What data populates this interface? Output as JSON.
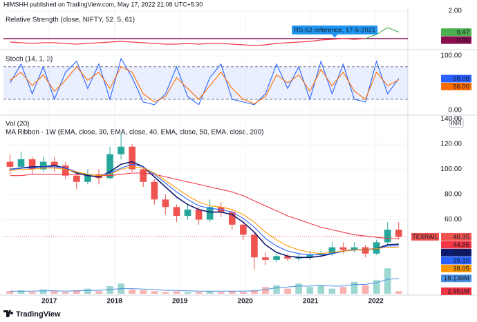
{
  "header": "HIMSHH published on TradingView.com, May 17, 2022 21:08 UTC+5:30",
  "footer": "TradingView",
  "chart_data": [
    {
      "type": "line",
      "title": "Relative Strength (close, NIFTY, 52, 5, 61)",
      "x": [
        2016.4,
        2016.57,
        2016.74,
        2016.91,
        2017.08,
        2017.25,
        2017.42,
        2017.59,
        2017.76,
        2017.93,
        2018.1,
        2018.27,
        2018.44,
        2018.61,
        2018.78,
        2018.95,
        2019.12,
        2019.29,
        2019.46,
        2019.63,
        2019.8,
        2019.97,
        2020.14,
        2020.31,
        2020.48,
        2020.65,
        2020.82,
        2020.99,
        2021.16,
        2021.33,
        2021.5,
        2021.67,
        2021.84,
        2022.01,
        2022.18,
        2022.35
      ],
      "xlim": [
        2016.3,
        2022.49
      ],
      "ylim": [
        -0.7,
        2.2
      ],
      "yticks": [
        {
          "value": 2,
          "label": "2.00"
        }
      ],
      "series": [
        {
          "color": "#f23645",
          "pos_color": "#4caf50",
          "label": "0.47",
          "values": [
            -0.25,
            -0.3,
            -0.35,
            -0.3,
            -0.3,
            -0.35,
            -0.4,
            -0.35,
            -0.3,
            -0.25,
            -0.2,
            -0.25,
            -0.3,
            -0.35,
            -0.4,
            -0.4,
            -0.35,
            -0.4,
            -0.35,
            -0.35,
            -0.4,
            -0.45,
            -0.5,
            -0.45,
            -0.35,
            -0.3,
            -0.25,
            -0.2,
            -0.1,
            -0.05,
            0,
            -0.05,
            0,
            0.3,
            0.8,
            0.47
          ]
        }
      ],
      "reference": {
        "value": 0,
        "label": "0.00",
        "color": "#880e4f"
      },
      "annotation": {
        "text": "RS-52 reference, 17-5-2021",
        "x": 2021.37,
        "color": "#2196f3"
      }
    },
    {
      "type": "line",
      "title": "Stoch (14, 1, 3)",
      "x": [
        2016.4,
        2016.57,
        2016.74,
        2016.91,
        2017.08,
        2017.25,
        2017.42,
        2017.59,
        2017.76,
        2017.93,
        2018.1,
        2018.27,
        2018.44,
        2018.61,
        2018.78,
        2018.95,
        2019.12,
        2019.29,
        2019.46,
        2019.63,
        2019.8,
        2019.97,
        2020.14,
        2020.31,
        2020.48,
        2020.65,
        2020.82,
        2020.99,
        2021.16,
        2021.33,
        2021.5,
        2021.67,
        2021.84,
        2022.01,
        2022.18,
        2022.35
      ],
      "xlim": [
        2016.3,
        2022.49
      ],
      "ylim": [
        -8,
        109
      ],
      "yticks": [
        {
          "value": 0,
          "label": "0.00"
        },
        {
          "value": 100,
          "label": "100.00"
        }
      ],
      "bands": [
        20,
        80
      ],
      "series": [
        {
          "color": "#2962ff",
          "label": "58.08",
          "values": [
            50,
            85,
            30,
            80,
            20,
            70,
            90,
            40,
            85,
            20,
            95,
            60,
            15,
            10,
            30,
            80,
            25,
            10,
            60,
            85,
            20,
            15,
            10,
            30,
            85,
            40,
            80,
            20,
            90,
            30,
            85,
            20,
            15,
            90,
            30,
            58.08
          ]
        },
        {
          "color": "#ff6d00",
          "label": "56.00",
          "values": [
            55,
            70,
            45,
            65,
            35,
            55,
            80,
            55,
            70,
            40,
            80,
            70,
            30,
            15,
            25,
            60,
            40,
            20,
            45,
            70,
            40,
            20,
            12,
            25,
            65,
            50,
            65,
            35,
            75,
            45,
            70,
            35,
            20,
            70,
            45,
            56
          ]
        }
      ]
    },
    {
      "type": "candlestick",
      "title": "MA Ribbon - 1W (EMA, close, 30, EMA, close, 40, EMA, close, 50, EMA, close, 200)",
      "currency": "INR",
      "symbol": "TEXRAIL",
      "last_label": "46.35",
      "x": [
        2016.4,
        2016.57,
        2016.74,
        2016.91,
        2017.08,
        2017.25,
        2017.42,
        2017.59,
        2017.76,
        2017.93,
        2018.1,
        2018.27,
        2018.44,
        2018.61,
        2018.78,
        2018.95,
        2019.12,
        2019.29,
        2019.46,
        2019.63,
        2019.8,
        2019.97,
        2020.14,
        2020.31,
        2020.48,
        2020.65,
        2020.82,
        2020.99,
        2021.16,
        2021.33,
        2021.5,
        2021.67,
        2021.84,
        2022.01,
        2022.18,
        2022.35
      ],
      "xlim": [
        2016.3,
        2022.49
      ],
      "ylim": [
        0,
        142.5
      ],
      "xticks": [
        2017,
        2018,
        2019,
        2020,
        2021,
        2022
      ],
      "yticks": [
        {
          "value": 60,
          "label": "60.00"
        },
        {
          "value": 80,
          "label": "80.00"
        },
        {
          "value": 100,
          "label": "100.00"
        },
        {
          "value": 120,
          "label": "120.00"
        },
        {
          "value": 140,
          "label": "140.00"
        }
      ],
      "open": [
        106,
        102,
        108,
        100,
        106,
        103,
        95,
        90,
        96,
        93,
        112,
        118,
        100,
        90,
        76,
        70,
        63,
        68,
        60,
        70,
        66,
        56,
        48,
        30,
        28,
        31,
        29,
        30,
        32,
        33,
        38,
        36,
        38,
        33,
        42,
        52
      ],
      "high": [
        112,
        114,
        110,
        110,
        110,
        106,
        98,
        100,
        100,
        118,
        128,
        120,
        102,
        92,
        80,
        72,
        72,
        70,
        76,
        74,
        68,
        58,
        50,
        34,
        33,
        33,
        33,
        35,
        36,
        42,
        42,
        42,
        40,
        44,
        58,
        58
      ],
      "low": [
        96,
        100,
        96,
        98,
        98,
        92,
        84,
        88,
        88,
        92,
        108,
        98,
        86,
        72,
        64,
        58,
        60,
        56,
        58,
        62,
        52,
        44,
        20,
        24,
        26,
        27,
        27,
        28,
        30,
        31,
        33,
        34,
        30,
        32,
        40,
        44
      ],
      "close": [
        102,
        108,
        100,
        106,
        103,
        95,
        90,
        96,
        93,
        112,
        118,
        100,
        90,
        76,
        70,
        63,
        68,
        60,
        70,
        66,
        56,
        48,
        30,
        28,
        31,
        29,
        30,
        32,
        33,
        38,
        36,
        38,
        33,
        42,
        52,
        46.35
      ],
      "up_color": "#26a69a",
      "down_color": "#ef5350",
      "series": [
        {
          "color": "#f23645",
          "label": "44.95",
          "values": [
            95,
            95,
            96,
            96,
            96,
            96,
            96,
            96,
            95,
            95,
            96,
            97,
            97,
            96,
            94,
            92,
            90,
            88,
            86,
            84,
            82,
            79,
            75,
            71,
            67,
            63,
            60,
            57,
            54,
            52,
            50,
            48,
            47,
            46,
            45,
            44.95
          ]
        },
        {
          "color": "#0d1a6e",
          "label": "40.50",
          "values": [
            100,
            101,
            102,
            102,
            103,
            101,
            97,
            95,
            94,
            98,
            104,
            106,
            102,
            94,
            86,
            78,
            72,
            68,
            66,
            66,
            64,
            58,
            50,
            40,
            34,
            31,
            30,
            30,
            31,
            33,
            35,
            36,
            36,
            37,
            40,
            40.5
          ]
        },
        {
          "color": "#2962ff",
          "label": "39.10",
          "values": [
            100,
            101,
            101,
            102,
            102,
            101,
            98,
            96,
            95,
            97,
            101,
            104,
            102,
            96,
            89,
            82,
            76,
            71,
            69,
            68,
            66,
            61,
            54,
            45,
            39,
            35,
            33,
            32,
            32,
            33,
            35,
            36,
            36,
            37,
            39,
            39.1
          ]
        },
        {
          "color": "#ff9800",
          "label": "38.05",
          "values": [
            99,
            100,
            100,
            101,
            101,
            100,
            98,
            96,
            95,
            96,
            100,
            102,
            101,
            97,
            91,
            85,
            79,
            74,
            71,
            70,
            68,
            64,
            58,
            50,
            44,
            39,
            36,
            34,
            33,
            34,
            35,
            36,
            36,
            37,
            38,
            38.05
          ]
        }
      ],
      "volume": {
        "title": "Vol (20)",
        "ylim": [
          0,
          210
        ],
        "label": "2.951M",
        "color": "#f23645",
        "values": [
          3,
          4,
          2,
          5,
          3,
          2,
          4,
          6,
          3,
          9,
          12,
          5,
          4,
          3,
          2,
          3,
          2,
          2,
          3,
          2,
          3,
          2,
          4,
          8,
          10,
          6,
          12,
          8,
          10,
          6,
          8,
          14,
          10,
          16,
          30,
          2.951
        ],
        "ma": {
          "color": "#4a90e2",
          "label": "18.139M",
          "values": [
            3,
            3,
            3,
            3.5,
            3.5,
            3,
            3.5,
            4,
            4,
            5,
            6,
            6,
            5.5,
            5,
            4,
            4,
            3.5,
            3,
            3,
            3,
            3,
            3,
            3.5,
            5,
            7,
            8,
            9,
            9,
            10,
            9,
            9,
            11,
            11,
            13,
            17,
            18.139
          ]
        }
      }
    }
  ]
}
